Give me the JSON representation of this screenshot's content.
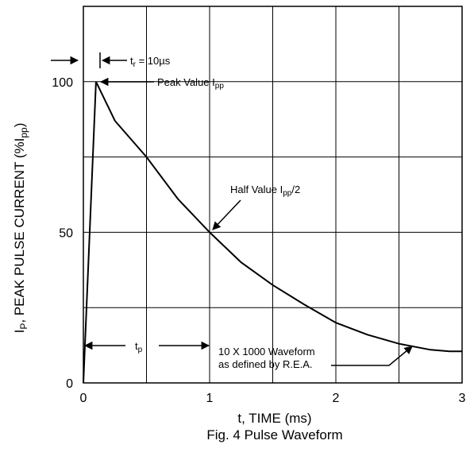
{
  "chart_data": {
    "type": "line",
    "title": "Fig. 4  Pulse Waveform",
    "xlabel": "t, TIME (ms)",
    "ylabel": {
      "main": "I",
      "sub": "P",
      "rest": ", PEAK PULSE CURRENT (%I",
      "sub2": "pp",
      "close": ")"
    },
    "xlim": [
      0,
      3
    ],
    "ylim": [
      0,
      125
    ],
    "x_ticks": [
      {
        "v": 0,
        "label": "0"
      },
      {
        "v": 1,
        "label": "1"
      },
      {
        "v": 2,
        "label": "2"
      },
      {
        "v": 3,
        "label": "3"
      }
    ],
    "y_ticks": [
      {
        "v": 0,
        "label": "0"
      },
      {
        "v": 50,
        "label": "50"
      },
      {
        "v": 100,
        "label": "100"
      }
    ],
    "grid_x": [
      0.5,
      1,
      1.5,
      2,
      2.5
    ],
    "grid_y": [
      25,
      50,
      75,
      100
    ],
    "grid": true,
    "series": [
      {
        "x": [
          0,
          0.1,
          0.25,
          0.5,
          0.75,
          1.0,
          1.25,
          1.5,
          1.75,
          2.0,
          2.25,
          2.5,
          2.75,
          2.9,
          3.0
        ],
        "y": [
          0,
          100,
          87,
          75,
          61,
          50,
          40,
          32.5,
          26,
          20,
          16,
          13,
          11,
          10.5,
          10.5
        ]
      }
    ],
    "annotations": {
      "tr": {
        "main": "t",
        "sub": "r",
        "rest": " = 10µs"
      },
      "peak": {
        "main": "Peak Value I",
        "sub": "pp"
      },
      "half": {
        "main": "Half Value I",
        "sub": "pp",
        "rest": "/2"
      },
      "tp": {
        "main": "t",
        "sub": "p"
      },
      "waveform": [
        "10 X 1000 Waveform",
        "as defined by R.E.A."
      ]
    }
  }
}
